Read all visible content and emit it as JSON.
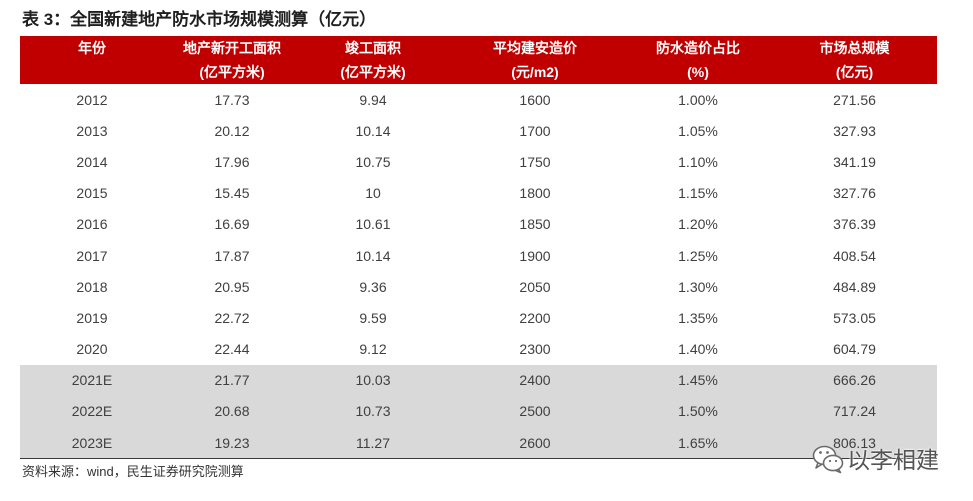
{
  "colors": {
    "header_background": "#C00000",
    "header_text": "#FFFFFF",
    "estimate_row_background": "#D9D9D9",
    "body_text": "#404040"
  },
  "chart_data": {
    "type": "table",
    "title": "表 3：全国新建地产防水市场规模测算（亿元）",
    "columns": [
      {
        "label": "年份"
      },
      {
        "label": "地产新开工面积",
        "unit": "(亿平方米)"
      },
      {
        "label": "竣工面积",
        "unit": "(亿平方米)"
      },
      {
        "label": "平均建安造价",
        "unit": "(元/m2)"
      },
      {
        "label": "防水造价占比",
        "unit": "(%)"
      },
      {
        "label": "市场总规模",
        "unit": "(亿元)"
      }
    ],
    "rows": [
      [
        "2012",
        "17.73",
        "9.94",
        "1600",
        "1.00%",
        "271.56"
      ],
      [
        "2013",
        "20.12",
        "10.14",
        "1700",
        "1.05%",
        "327.93"
      ],
      [
        "2014",
        "17.96",
        "10.75",
        "1750",
        "1.10%",
        "341.19"
      ],
      [
        "2015",
        "15.45",
        "10",
        "1800",
        "1.15%",
        "327.76"
      ],
      [
        "2016",
        "16.69",
        "10.61",
        "1850",
        "1.20%",
        "376.39"
      ],
      [
        "2017",
        "17.87",
        "10.14",
        "1900",
        "1.25%",
        "408.54"
      ],
      [
        "2018",
        "20.95",
        "9.36",
        "2050",
        "1.30%",
        "484.89"
      ],
      [
        "2019",
        "22.72",
        "9.59",
        "2200",
        "1.35%",
        "573.05"
      ],
      [
        "2020",
        "22.44",
        "9.12",
        "2300",
        "1.40%",
        "604.79"
      ],
      [
        "2021E",
        "21.77",
        "10.03",
        "2400",
        "1.45%",
        "666.26"
      ],
      [
        "2022E",
        "20.68",
        "10.73",
        "2500",
        "1.50%",
        "717.24"
      ],
      [
        "2023E",
        "19.23",
        "11.27",
        "2600",
        "1.65%",
        "806.13"
      ]
    ],
    "source": "资料来源：wind，民生证券研究院测算"
  },
  "watermark": {
    "icon": "wechat-icon",
    "text": "以李相建"
  }
}
